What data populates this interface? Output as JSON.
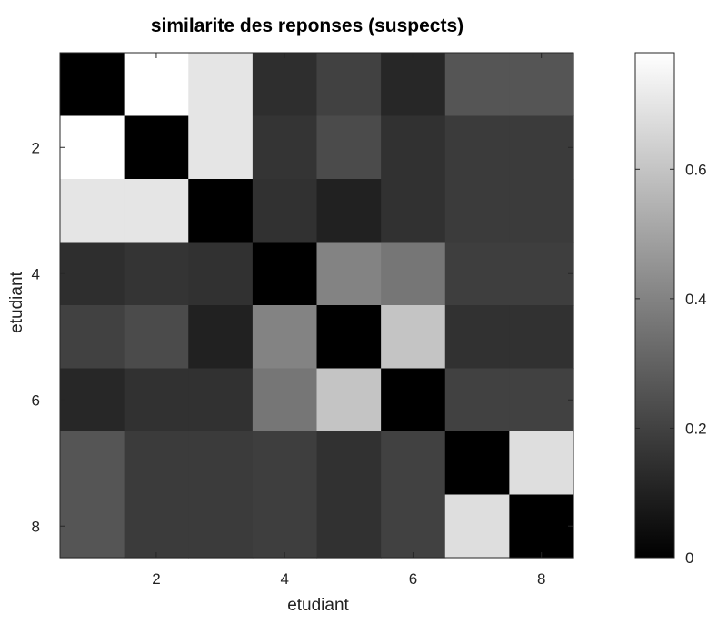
{
  "chart_data": {
    "type": "heatmap",
    "title": "similarite des reponses (suspects)",
    "xlabel": "etudiant",
    "ylabel": "etudiant",
    "colormap": "gray",
    "x_categories": [
      1,
      2,
      3,
      4,
      5,
      6,
      7,
      8
    ],
    "y_categories": [
      1,
      2,
      3,
      4,
      5,
      6,
      7,
      8
    ],
    "x_tick_labels": [
      "2",
      "4",
      "6",
      "8"
    ],
    "y_tick_labels": [
      "2",
      "4",
      "6",
      "8"
    ],
    "matrix": [
      [
        0.0,
        0.78,
        0.7,
        0.14,
        0.2,
        0.12,
        0.26,
        0.26
      ],
      [
        0.78,
        0.0,
        0.7,
        0.16,
        0.23,
        0.15,
        0.18,
        0.18
      ],
      [
        0.7,
        0.7,
        0.0,
        0.15,
        0.1,
        0.15,
        0.18,
        0.18
      ],
      [
        0.14,
        0.16,
        0.15,
        0.0,
        0.4,
        0.36,
        0.19,
        0.19
      ],
      [
        0.2,
        0.23,
        0.1,
        0.4,
        0.0,
        0.6,
        0.15,
        0.15
      ],
      [
        0.12,
        0.15,
        0.15,
        0.36,
        0.6,
        0.0,
        0.2,
        0.2
      ],
      [
        0.26,
        0.18,
        0.18,
        0.19,
        0.15,
        0.2,
        0.0,
        0.68
      ],
      [
        0.26,
        0.18,
        0.18,
        0.19,
        0.15,
        0.2,
        0.68,
        0.0
      ]
    ],
    "colorbar": {
      "range": [
        0,
        0.78
      ],
      "ticks": [
        0,
        0.2,
        0.4,
        0.6
      ],
      "tick_labels": [
        "0",
        "0.2",
        "0.4",
        "0.6"
      ]
    },
    "grid": false
  }
}
